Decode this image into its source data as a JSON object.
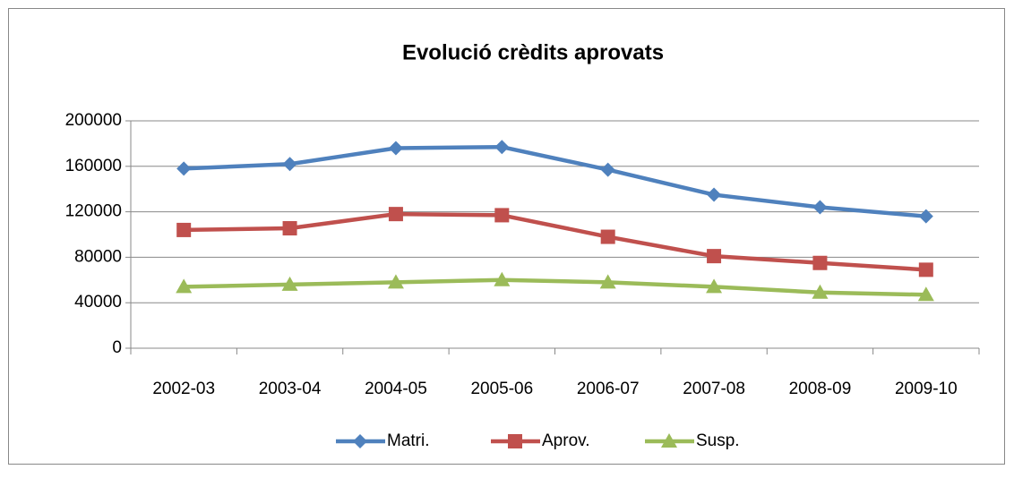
{
  "chart_data": {
    "type": "line",
    "title": "Evolució crèdits aprovats",
    "categories": [
      "2002-03",
      "2003-04",
      "2004-05",
      "2005-06",
      "2006-07",
      "2007-08",
      "2008-09",
      "2009-10"
    ],
    "series": [
      {
        "name": "Matri.",
        "color": "#4f81bd",
        "marker": "diamond",
        "values": [
          158000,
          162000,
          176000,
          177000,
          157000,
          135000,
          124000,
          116000
        ]
      },
      {
        "name": "Aprov.",
        "color": "#c0504d",
        "marker": "square",
        "values": [
          104000,
          105500,
          118000,
          117000,
          98000,
          81000,
          75000,
          69000
        ]
      },
      {
        "name": "Susp.",
        "color": "#9bbb59",
        "marker": "triangle",
        "values": [
          54000,
          56000,
          58000,
          60000,
          58000,
          54000,
          49000,
          47000
        ]
      }
    ],
    "ylim": [
      0,
      200000
    ],
    "yticks": [
      0,
      40000,
      80000,
      120000,
      160000,
      200000
    ],
    "grid": true,
    "legend": "bottom"
  }
}
